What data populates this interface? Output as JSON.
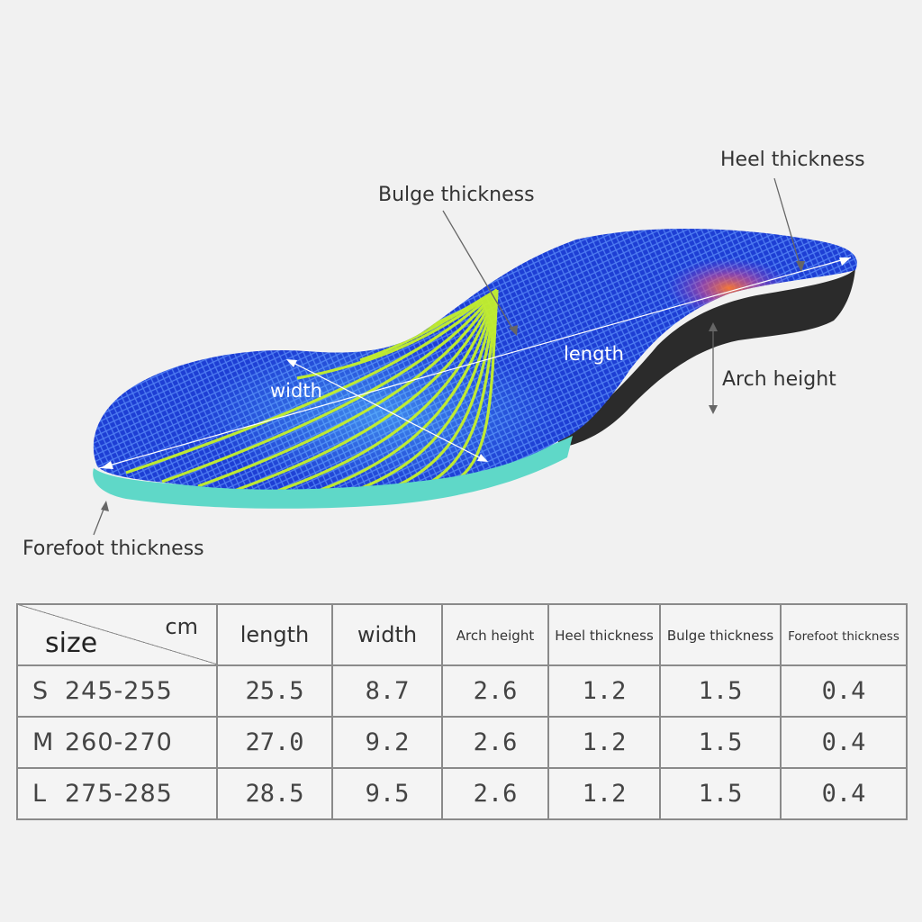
{
  "labels": {
    "heel_thickness": "Heel thickness",
    "bulge_thickness": "Bulge thickness",
    "length": "length",
    "width": "width",
    "arch_height": "Arch height",
    "forefoot_thickness": "Forefoot thickness"
  },
  "table": {
    "corner_unit": "cm",
    "corner_label": "size",
    "headers": [
      "length",
      "width",
      "Arch height",
      "Heel thickness",
      "Bulge thickness",
      "Forefoot thickness"
    ],
    "rows": [
      {
        "size": "S",
        "range": "245-255",
        "values": [
          "25.5",
          "8.7",
          "2.6",
          "1.2",
          "1.5",
          "0.4"
        ]
      },
      {
        "size": "M",
        "range": "260-270",
        "values": [
          "27.0",
          "9.2",
          "2.6",
          "1.2",
          "1.5",
          "0.4"
        ]
      },
      {
        "size": "L",
        "range": "275-285",
        "values": [
          "28.5",
          "9.5",
          "2.6",
          "1.2",
          "1.5",
          "0.4"
        ]
      }
    ]
  },
  "colors": {
    "insole_blue": "#1a3fd6",
    "mesh_lines": "#4a78f0",
    "support_lines": "#c4f02a",
    "base_teal": "#5fd8c8",
    "heel_base": "#2a2a2a",
    "heat_spot": "#ff6a2a"
  }
}
